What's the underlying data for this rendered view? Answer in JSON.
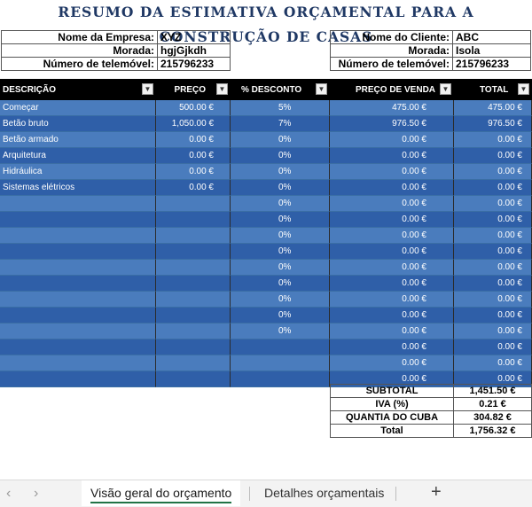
{
  "title": "RESUMO DA ESTIMATIVA ORÇAMENTAL PARA A CONSTRUÇÃO DE CASAS",
  "company": {
    "name_label": "Nome da Empresa:",
    "name_value": "XYZ",
    "address_label": "Morada:",
    "address_value": "hgjGjkdh",
    "phone_label": "Número de telemóvel:",
    "phone_value": "215796233"
  },
  "client": {
    "name_label": "Nome do Cliente:",
    "name_value": "ABC",
    "address_label": "Morada:",
    "address_value": "Isola",
    "phone_label": "Número de telemóvel:",
    "phone_value": "215796233"
  },
  "table": {
    "headers": [
      "DESCRIÇÃO",
      "PREÇO",
      "% DESCONTO",
      "PREÇO DE VENDA",
      "TOTAL"
    ],
    "dropdown_icon": "chevron-down-icon",
    "rows": [
      [
        "Começar",
        "500.00 €",
        "5%",
        "475.00 €",
        "475.00 €"
      ],
      [
        "Betão bruto",
        "1,050.00 €",
        "7%",
        "976.50 €",
        "976.50 €"
      ],
      [
        "Betão armado",
        "0.00 €",
        "0%",
        "0.00 €",
        "0.00 €"
      ],
      [
        "Arquitetura",
        "0.00 €",
        "0%",
        "0.00 €",
        "0.00 €"
      ],
      [
        "Hidráulica",
        "0.00 €",
        "0%",
        "0.00 €",
        "0.00 €"
      ],
      [
        "Sistemas elétricos",
        "0.00 €",
        "0%",
        "0.00 €",
        "0.00 €"
      ],
      [
        "",
        "",
        "0%",
        "0.00 €",
        "0.00 €"
      ],
      [
        "",
        "",
        "0%",
        "0.00 €",
        "0.00 €"
      ],
      [
        "",
        "",
        "0%",
        "0.00 €",
        "0.00 €"
      ],
      [
        "",
        "",
        "0%",
        "0.00 €",
        "0.00 €"
      ],
      [
        "",
        "",
        "0%",
        "0.00 €",
        "0.00 €"
      ],
      [
        "",
        "",
        "0%",
        "0.00 €",
        "0.00 €"
      ],
      [
        "",
        "",
        "0%",
        "0.00 €",
        "0.00 €"
      ],
      [
        "",
        "",
        "0%",
        "0.00 €",
        "0.00 €"
      ],
      [
        "",
        "",
        "0%",
        "0.00 €",
        "0.00 €"
      ],
      [
        "",
        "",
        "",
        "0.00 €",
        "0.00 €"
      ],
      [
        "",
        "",
        "",
        "0.00 €",
        "0.00 €"
      ],
      [
        "",
        "",
        "",
        "0.00 €",
        "0.00 €"
      ]
    ],
    "colors": {
      "header_bg": "#000000",
      "row_light": "#4a7cbd",
      "row_dark": "#2f5fa8"
    }
  },
  "summary": [
    {
      "label": "SUBTOTAL",
      "value": "1,451.50 €"
    },
    {
      "label": "IVA (%)",
      "value": "0.21 €"
    },
    {
      "label": "QUANTIA DO CUBA",
      "value": "304.82 €"
    },
    {
      "label": "Total",
      "value": "1,756.32 €"
    }
  ],
  "sheet_tabs": {
    "prev_icon": "chevron-left-icon",
    "next_icon": "chevron-right-icon",
    "tabs": [
      "Visão geral do orçamento",
      "Detalhes orçamentais"
    ],
    "active": "Visão geral do orçamento",
    "add_label": "+"
  }
}
